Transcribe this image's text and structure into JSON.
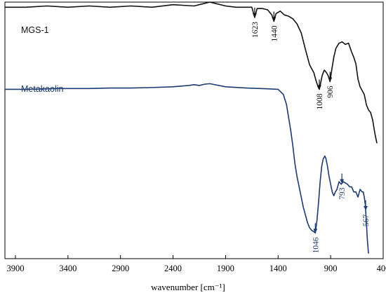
{
  "chart_data": {
    "type": "line",
    "xlabel": "wavenumber [cm⁻¹]",
    "ylabel": "",
    "xlim": [
      4000,
      400
    ],
    "x_reversed": true,
    "x_ticks": [
      3900,
      3400,
      2900,
      2400,
      1900,
      1400,
      900,
      400
    ],
    "y_ticks_shown": false,
    "grid": false,
    "legend": "inline labels",
    "series": [
      {
        "name": "MGS-1",
        "color": "#111111",
        "points": [
          [
            4000,
            0.02
          ],
          [
            3800,
            0.02
          ],
          [
            3600,
            0.015
          ],
          [
            3400,
            0.02
          ],
          [
            3200,
            0.015
          ],
          [
            3000,
            0.02
          ],
          [
            2800,
            0.015
          ],
          [
            2600,
            0.02
          ],
          [
            2400,
            0.01
          ],
          [
            2200,
            0.015
          ],
          [
            2100,
            0.005
          ],
          [
            2050,
            0.0
          ],
          [
            2000,
            0.005
          ],
          [
            1900,
            0.015
          ],
          [
            1800,
            0.02
          ],
          [
            1700,
            0.02
          ],
          [
            1650,
            0.02
          ],
          [
            1623,
            0.06
          ],
          [
            1600,
            0.025
          ],
          [
            1550,
            0.025
          ],
          [
            1500,
            0.03
          ],
          [
            1460,
            0.05
          ],
          [
            1440,
            0.075
          ],
          [
            1420,
            0.045
          ],
          [
            1380,
            0.035
          ],
          [
            1340,
            0.05
          ],
          [
            1300,
            0.055
          ],
          [
            1260,
            0.065
          ],
          [
            1220,
            0.085
          ],
          [
            1180,
            0.12
          ],
          [
            1140,
            0.185
          ],
          [
            1100,
            0.245
          ],
          [
            1060,
            0.275
          ],
          [
            1040,
            0.305
          ],
          [
            1020,
            0.33
          ],
          [
            1008,
            0.34
          ],
          [
            995,
            0.315
          ],
          [
            980,
            0.285
          ],
          [
            960,
            0.265
          ],
          [
            940,
            0.275
          ],
          [
            920,
            0.29
          ],
          [
            906,
            0.31
          ],
          [
            890,
            0.265
          ],
          [
            870,
            0.215
          ],
          [
            850,
            0.18
          ],
          [
            820,
            0.16
          ],
          [
            790,
            0.155
          ],
          [
            760,
            0.165
          ],
          [
            730,
            0.16
          ],
          [
            700,
            0.195
          ],
          [
            680,
            0.215
          ],
          [
            660,
            0.24
          ],
          [
            640,
            0.3
          ],
          [
            620,
            0.33
          ],
          [
            600,
            0.345
          ],
          [
            580,
            0.36
          ],
          [
            560,
            0.4
          ],
          [
            540,
            0.42
          ],
          [
            520,
            0.43
          ],
          [
            500,
            0.46
          ],
          [
            480,
            0.51
          ],
          [
            460,
            0.55
          ]
        ]
      },
      {
        "name": "Metakaolin",
        "color": "#1c3a70",
        "points": [
          [
            4000,
            0.34
          ],
          [
            3800,
            0.34
          ],
          [
            3500,
            0.337
          ],
          [
            3200,
            0.337
          ],
          [
            3000,
            0.335
          ],
          [
            2800,
            0.335
          ],
          [
            2600,
            0.333
          ],
          [
            2400,
            0.33
          ],
          [
            2250,
            0.325
          ],
          [
            2200,
            0.322
          ],
          [
            2150,
            0.325
          ],
          [
            2100,
            0.32
          ],
          [
            2050,
            0.318
          ],
          [
            2000,
            0.322
          ],
          [
            1900,
            0.33
          ],
          [
            1700,
            0.335
          ],
          [
            1500,
            0.338
          ],
          [
            1400,
            0.34
          ],
          [
            1350,
            0.36
          ],
          [
            1320,
            0.4
          ],
          [
            1300,
            0.45
          ],
          [
            1280,
            0.5
          ],
          [
            1260,
            0.56
          ],
          [
            1240,
            0.63
          ],
          [
            1220,
            0.68
          ],
          [
            1200,
            0.72
          ],
          [
            1180,
            0.76
          ],
          [
            1160,
            0.8
          ],
          [
            1140,
            0.83
          ],
          [
            1120,
            0.86
          ],
          [
            1100,
            0.88
          ],
          [
            1080,
            0.89
          ],
          [
            1060,
            0.895
          ],
          [
            1046,
            0.9
          ],
          [
            1030,
            0.85
          ],
          [
            1015,
            0.78
          ],
          [
            1000,
            0.7
          ],
          [
            985,
            0.64
          ],
          [
            970,
            0.61
          ],
          [
            955,
            0.6
          ],
          [
            945,
            0.61
          ],
          [
            930,
            0.64
          ],
          [
            915,
            0.68
          ],
          [
            900,
            0.71
          ],
          [
            885,
            0.74
          ],
          [
            870,
            0.755
          ],
          [
            855,
            0.74
          ],
          [
            840,
            0.73
          ],
          [
            820,
            0.7
          ],
          [
            800,
            0.71
          ],
          [
            780,
            0.7
          ],
          [
            760,
            0.705
          ],
          [
            740,
            0.71
          ],
          [
            720,
            0.72
          ],
          [
            700,
            0.72
          ],
          [
            680,
            0.74
          ],
          [
            660,
            0.74
          ],
          [
            640,
            0.76
          ],
          [
            620,
            0.73
          ],
          [
            600,
            0.74
          ],
          [
            590,
            0.74
          ],
          [
            580,
            0.76
          ],
          [
            570,
            0.79
          ],
          [
            560,
            0.86
          ],
          [
            550,
            0.93
          ],
          [
            540,
            0.98
          ]
        ]
      }
    ],
    "annotations": [
      {
        "series": "MGS-1",
        "label": "1623",
        "x": 1623
      },
      {
        "series": "MGS-1",
        "label": "1440",
        "x": 1440
      },
      {
        "series": "MGS-1",
        "label": "1008",
        "x": 1008
      },
      {
        "series": "MGS-1",
        "label": "906",
        "x": 906
      },
      {
        "series": "Metakaolin",
        "label": "1046",
        "x": 1046
      },
      {
        "series": "Metakaolin",
        "label": "793",
        "x": 793
      },
      {
        "series": "Metakaolin",
        "label": "567",
        "x": 567
      }
    ]
  }
}
